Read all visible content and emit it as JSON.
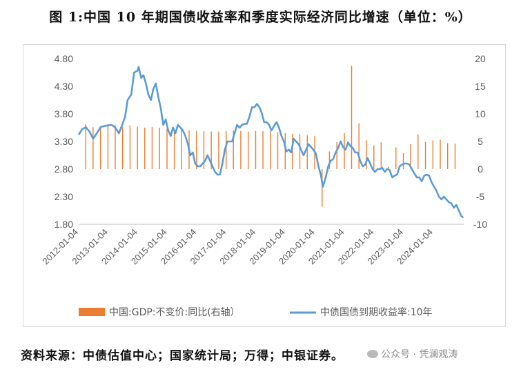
{
  "title": "图 1:中国 10 年期国债收益率和季度实际经济同比增速（单位：%）",
  "source": "资料来源：中债估值中心；国家统计局；万得；中银证券。",
  "watermark": "公众号 · 凭澜观涛",
  "colors": {
    "bar": "#ED7D31",
    "line": "#5B9BD5",
    "axis": "#595959",
    "grid": "#d9d9d9"
  },
  "chart_data": {
    "type": "bar+line",
    "xlabels": [
      "2012-01-04",
      "2013-01-04",
      "2014-01-04",
      "2015-01-04",
      "2016-01-04",
      "2017-01-04",
      "2018-01-04",
      "2019-01-04",
      "2020-01-04",
      "2021-01-04",
      "2022-01-04",
      "2023-01-04",
      "2024-01-04"
    ],
    "xlim": [
      "2012-01-04",
      "2025-01-15"
    ],
    "y_left": {
      "ticks": [
        "4.80",
        "4.30",
        "3.80",
        "3.30",
        "2.80",
        "2.30",
        "1.80"
      ],
      "min": 1.8,
      "max": 4.8
    },
    "y_right": {
      "ticks": [
        "20",
        "15",
        "10",
        "5",
        "0",
        "-5",
        "-10"
      ],
      "min": -10,
      "max": 20
    },
    "legend": [
      "中国:GDP:不变价:同比(右轴）",
      "中债国债到期收益率:10年"
    ],
    "legend_position": "bottom",
    "bars": {
      "name": "中国:GDP:不变价:同比(右轴）",
      "axis": "right",
      "points": [
        [
          "2012-03-31",
          8.1
        ],
        [
          "2012-06-30",
          7.6
        ],
        [
          "2012-09-30",
          7.5
        ],
        [
          "2012-12-31",
          8.1
        ],
        [
          "2013-03-31",
          7.9
        ],
        [
          "2013-06-30",
          7.6
        ],
        [
          "2013-09-30",
          7.9
        ],
        [
          "2013-12-31",
          7.7
        ],
        [
          "2014-03-31",
          7.5
        ],
        [
          "2014-06-30",
          7.6
        ],
        [
          "2014-09-30",
          7.5
        ],
        [
          "2014-12-31",
          7.3
        ],
        [
          "2015-03-31",
          7.1
        ],
        [
          "2015-06-30",
          7.1
        ],
        [
          "2015-09-30",
          7.0
        ],
        [
          "2015-12-31",
          6.9
        ],
        [
          "2016-03-31",
          6.9
        ],
        [
          "2016-06-30",
          6.8
        ],
        [
          "2016-09-30",
          6.8
        ],
        [
          "2016-12-31",
          6.9
        ],
        [
          "2017-03-31",
          7.0
        ],
        [
          "2017-06-30",
          6.9
        ],
        [
          "2017-09-30",
          6.8
        ],
        [
          "2017-12-31",
          6.9
        ],
        [
          "2018-03-31",
          6.9
        ],
        [
          "2018-06-30",
          6.9
        ],
        [
          "2018-09-30",
          6.7
        ],
        [
          "2018-12-31",
          6.5
        ],
        [
          "2019-03-31",
          6.4
        ],
        [
          "2019-06-30",
          6.3
        ],
        [
          "2019-09-30",
          6.1
        ],
        [
          "2019-12-31",
          6.0
        ],
        [
          "2020-03-31",
          -6.8
        ],
        [
          "2020-06-30",
          3.2
        ],
        [
          "2020-09-30",
          4.9
        ],
        [
          "2020-12-31",
          6.5
        ],
        [
          "2021-03-31",
          18.7
        ],
        [
          "2021-06-30",
          8.3
        ],
        [
          "2021-09-30",
          5.2
        ],
        [
          "2021-12-31",
          4.3
        ],
        [
          "2022-03-31",
          4.8
        ],
        [
          "2022-06-30",
          0.4
        ],
        [
          "2022-09-30",
          3.9
        ],
        [
          "2022-12-31",
          2.9
        ],
        [
          "2023-03-31",
          4.5
        ],
        [
          "2023-06-30",
          6.3
        ],
        [
          "2023-09-30",
          4.9
        ],
        [
          "2023-12-31",
          5.2
        ],
        [
          "2024-03-31",
          5.3
        ],
        [
          "2024-06-30",
          4.7
        ],
        [
          "2024-09-30",
          4.6
        ]
      ]
    },
    "line": {
      "name": "中债国债到期收益率:10年",
      "axis": "left",
      "points": [
        [
          "2012-01-04",
          3.42
        ],
        [
          "2012-02-15",
          3.52
        ],
        [
          "2012-04-01",
          3.56
        ],
        [
          "2012-05-15",
          3.48
        ],
        [
          "2012-07-01",
          3.35
        ],
        [
          "2012-08-15",
          3.45
        ],
        [
          "2012-10-01",
          3.56
        ],
        [
          "2012-11-15",
          3.58
        ],
        [
          "2012-12-31",
          3.59
        ],
        [
          "2013-02-15",
          3.6
        ],
        [
          "2013-04-01",
          3.55
        ],
        [
          "2013-05-15",
          3.45
        ],
        [
          "2013-06-20",
          3.58
        ],
        [
          "2013-07-31",
          3.75
        ],
        [
          "2013-08-31",
          4.05
        ],
        [
          "2013-10-15",
          4.15
        ],
        [
          "2013-11-20",
          4.55
        ],
        [
          "2013-12-31",
          4.58
        ],
        [
          "2014-01-15",
          4.65
        ],
        [
          "2014-02-15",
          4.45
        ],
        [
          "2014-03-15",
          4.5
        ],
        [
          "2014-04-15",
          4.35
        ],
        [
          "2014-05-15",
          4.15
        ],
        [
          "2014-06-15",
          4.05
        ],
        [
          "2014-07-15",
          4.25
        ],
        [
          "2014-08-15",
          4.35
        ],
        [
          "2014-09-15",
          4.1
        ],
        [
          "2014-10-15",
          3.9
        ],
        [
          "2014-11-15",
          3.6
        ],
        [
          "2014-12-15",
          3.7
        ],
        [
          "2015-01-15",
          3.5
        ],
        [
          "2015-02-15",
          3.4
        ],
        [
          "2015-03-15",
          3.55
        ],
        [
          "2015-04-15",
          3.45
        ],
        [
          "2015-05-15",
          3.6
        ],
        [
          "2015-06-15",
          3.55
        ],
        [
          "2015-07-15",
          3.5
        ],
        [
          "2015-08-15",
          3.4
        ],
        [
          "2015-09-15",
          3.25
        ],
        [
          "2015-10-15",
          3.05
        ],
        [
          "2015-11-15",
          3.1
        ],
        [
          "2015-12-15",
          2.9
        ],
        [
          "2016-01-15",
          2.85
        ],
        [
          "2016-02-15",
          2.85
        ],
        [
          "2016-03-15",
          2.9
        ],
        [
          "2016-04-15",
          2.95
        ],
        [
          "2016-05-15",
          3.05
        ],
        [
          "2016-06-15",
          2.95
        ],
        [
          "2016-07-15",
          2.85
        ],
        [
          "2016-08-15",
          2.75
        ],
        [
          "2016-09-15",
          2.7
        ],
        [
          "2016-10-15",
          2.7
        ],
        [
          "2016-11-15",
          2.9
        ],
        [
          "2016-12-15",
          3.15
        ],
        [
          "2017-01-15",
          3.3
        ],
        [
          "2017-02-15",
          3.3
        ],
        [
          "2017-03-15",
          3.3
        ],
        [
          "2017-04-15",
          3.45
        ],
        [
          "2017-05-15",
          3.6
        ],
        [
          "2017-06-15",
          3.55
        ],
        [
          "2017-07-15",
          3.6
        ],
        [
          "2017-08-15",
          3.62
        ],
        [
          "2017-09-15",
          3.62
        ],
        [
          "2017-10-15",
          3.75
        ],
        [
          "2017-11-15",
          3.92
        ],
        [
          "2017-12-15",
          3.92
        ],
        [
          "2018-01-15",
          3.98
        ],
        [
          "2018-02-15",
          3.92
        ],
        [
          "2018-03-15",
          3.82
        ],
        [
          "2018-04-15",
          3.65
        ],
        [
          "2018-05-15",
          3.65
        ],
        [
          "2018-06-15",
          3.6
        ],
        [
          "2018-07-15",
          3.5
        ],
        [
          "2018-08-15",
          3.58
        ],
        [
          "2018-09-15",
          3.65
        ],
        [
          "2018-10-15",
          3.55
        ],
        [
          "2018-11-15",
          3.4
        ],
        [
          "2018-12-15",
          3.3
        ],
        [
          "2019-01-15",
          3.12
        ],
        [
          "2019-02-15",
          3.15
        ],
        [
          "2019-03-15",
          3.1
        ],
        [
          "2019-04-15",
          3.35
        ],
        [
          "2019-05-15",
          3.3
        ],
        [
          "2019-06-15",
          3.25
        ],
        [
          "2019-07-15",
          3.15
        ],
        [
          "2019-08-15",
          3.05
        ],
        [
          "2019-09-15",
          3.15
        ],
        [
          "2019-10-15",
          3.25
        ],
        [
          "2019-11-15",
          3.2
        ],
        [
          "2019-12-15",
          3.15
        ],
        [
          "2020-01-15",
          3.08
        ],
        [
          "2020-02-15",
          2.85
        ],
        [
          "2020-03-15",
          2.7
        ],
        [
          "2020-04-10",
          2.48
        ],
        [
          "2020-05-15",
          2.65
        ],
        [
          "2020-06-15",
          2.85
        ],
        [
          "2020-07-15",
          2.95
        ],
        [
          "2020-08-15",
          2.98
        ],
        [
          "2020-09-15",
          3.1
        ],
        [
          "2020-10-15",
          3.18
        ],
        [
          "2020-11-15",
          3.3
        ],
        [
          "2020-12-15",
          3.2
        ],
        [
          "2021-01-15",
          3.15
        ],
        [
          "2021-02-15",
          3.28
        ],
        [
          "2021-03-15",
          3.22
        ],
        [
          "2021-04-15",
          3.18
        ],
        [
          "2021-05-15",
          3.1
        ],
        [
          "2021-06-15",
          3.1
        ],
        [
          "2021-07-15",
          2.95
        ],
        [
          "2021-08-15",
          2.85
        ],
        [
          "2021-09-15",
          2.88
        ],
        [
          "2021-10-15",
          3.0
        ],
        [
          "2021-11-15",
          2.9
        ],
        [
          "2021-12-15",
          2.8
        ],
        [
          "2022-01-15",
          2.75
        ],
        [
          "2022-02-15",
          2.8
        ],
        [
          "2022-03-15",
          2.8
        ],
        [
          "2022-04-15",
          2.82
        ],
        [
          "2022-05-15",
          2.75
        ],
        [
          "2022-06-15",
          2.8
        ],
        [
          "2022-07-15",
          2.78
        ],
        [
          "2022-08-15",
          2.65
        ],
        [
          "2022-09-15",
          2.68
        ],
        [
          "2022-10-15",
          2.7
        ],
        [
          "2022-11-15",
          2.85
        ],
        [
          "2022-12-15",
          2.88
        ],
        [
          "2023-01-15",
          2.9
        ],
        [
          "2023-02-15",
          2.9
        ],
        [
          "2023-03-15",
          2.88
        ],
        [
          "2023-04-15",
          2.8
        ],
        [
          "2023-05-15",
          2.72
        ],
        [
          "2023-06-15",
          2.65
        ],
        [
          "2023-07-15",
          2.65
        ],
        [
          "2023-08-15",
          2.58
        ],
        [
          "2023-09-15",
          2.68
        ],
        [
          "2023-10-15",
          2.7
        ],
        [
          "2023-11-15",
          2.68
        ],
        [
          "2023-12-15",
          2.56
        ],
        [
          "2024-01-15",
          2.48
        ],
        [
          "2024-02-15",
          2.4
        ],
        [
          "2024-03-15",
          2.3
        ],
        [
          "2024-04-15",
          2.25
        ],
        [
          "2024-05-15",
          2.3
        ],
        [
          "2024-06-15",
          2.25
        ],
        [
          "2024-07-15",
          2.2
        ],
        [
          "2024-08-15",
          2.18
        ],
        [
          "2024-09-15",
          2.1
        ],
        [
          "2024-10-15",
          2.15
        ],
        [
          "2024-11-15",
          2.05
        ],
        [
          "2024-12-15",
          1.95
        ],
        [
          "2025-01-10",
          1.92
        ]
      ]
    }
  }
}
